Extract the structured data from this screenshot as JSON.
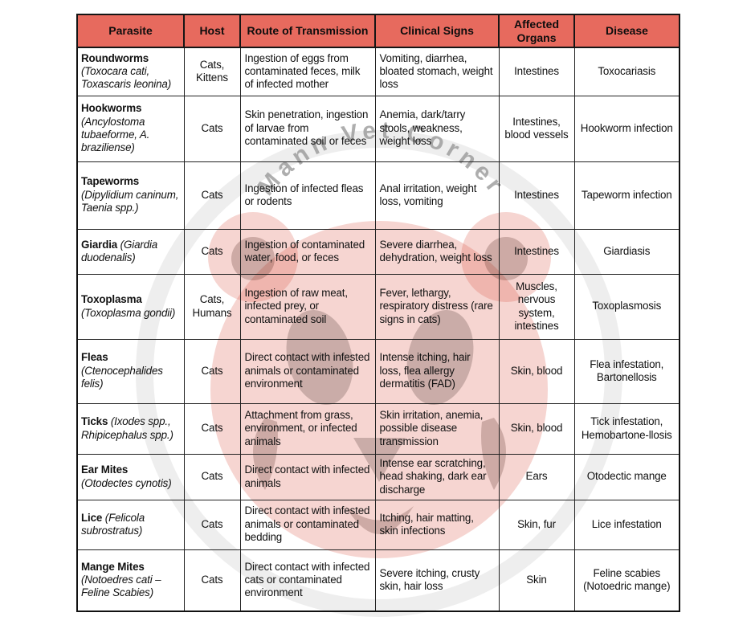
{
  "table": {
    "columns": [
      "Parasite",
      "Host",
      "Route of Transmission",
      "Clinical Signs",
      "Affected Organs",
      "Disease"
    ],
    "rows": [
      {
        "name": "Roundworms",
        "sci": "(Toxocara cati, Toxascaris leonina)",
        "host": "Cats, Kittens",
        "route": "Ingestion of eggs from contaminated feces, milk of infected mother",
        "signs": "Vomiting, diarrhea, bloated stomach, weight loss",
        "organs": "Intestines",
        "disease": "Toxocariasis"
      },
      {
        "name": "Hookworms",
        "sci": "(Ancylostoma tubaeforme, A. braziliense)",
        "host": "Cats",
        "route": "Skin penetration, ingestion of larvae from contaminated soil or feces",
        "signs": "Anemia, dark/tarry stools, weakness, weight loss",
        "organs": "Intestines, blood vessels",
        "disease": "Hookworm infection"
      },
      {
        "name": "Tapeworms",
        "sci": "(Dipylidium caninum, Taenia spp.)",
        "host": "Cats",
        "route": "Ingestion of infected fleas or rodents",
        "signs": "Anal irritation, weight loss, vomiting",
        "organs": "Intestines",
        "disease": "Tapeworm infection"
      },
      {
        "name": "Giardia",
        "sci": "(Giardia duodenalis)",
        "host": "Cats",
        "route": "Ingestion of contaminated water, food, or feces",
        "signs": "Severe diarrhea, dehydration, weight loss",
        "organs": "Intestines",
        "disease": "Giardiasis"
      },
      {
        "name": "Toxoplasma",
        "sci": "(Toxoplasma gondii)",
        "host": "Cats, Humans",
        "route": "Ingestion of raw meat, infected prey, or contaminated soil",
        "signs": "Fever, lethargy, respiratory distress (rare signs in cats)",
        "organs": "Muscles, nervous system, intestines",
        "disease": "Toxoplasmosis"
      },
      {
        "name": "Fleas",
        "sci": "(Ctenocephalides felis)",
        "host": "Cats",
        "route": "Direct contact with infested animals or contaminated environment",
        "signs": "Intense itching, hair loss, flea allergy dermatitis (FAD)",
        "organs": "Skin, blood",
        "disease": "Flea infestation, Bartonellosis"
      },
      {
        "name": "Ticks",
        "sci": "(Ixodes spp., Rhipicephalus spp.)",
        "host": "Cats",
        "route": "Attachment from grass, environment, or infected animals",
        "signs": "Skin irritation, anemia, possible disease transmission",
        "organs": "Skin, blood",
        "disease": "Tick infestation, Hemobartone-llosis"
      },
      {
        "name": "Ear Mites",
        "sci": "(Otodectes cynotis)",
        "host": "Cats",
        "route": "Direct contact with infected animals",
        "signs": "Intense ear scratching, head shaking, dark ear discharge",
        "organs": "Ears",
        "disease": "Otodectic mange"
      },
      {
        "name": "Lice",
        "sci": "(Felicola subrostratus)",
        "host": "Cats",
        "route": "Direct contact with infested animals or contaminated bedding",
        "signs": "Itching, hair matting, skin infections",
        "organs": "Skin, fur",
        "disease": "Lice infestation"
      },
      {
        "name": "Mange Mites",
        "sci": "(Notoedres cati – Feline Scabies)",
        "host": "Cats",
        "route": "Direct contact with infected cats or contaminated environment",
        "signs": "Severe itching, crusty skin, hair loss",
        "organs": "Skin",
        "disease": "Feline scabies (Notoedric mange)"
      }
    ]
  },
  "watermark": {
    "text": "Mann Vet Corner"
  },
  "colors": {
    "header_bg": "#E76A5E",
    "watermark_red": "#D94F3D",
    "watermark_gray": "#9A9A9A"
  }
}
